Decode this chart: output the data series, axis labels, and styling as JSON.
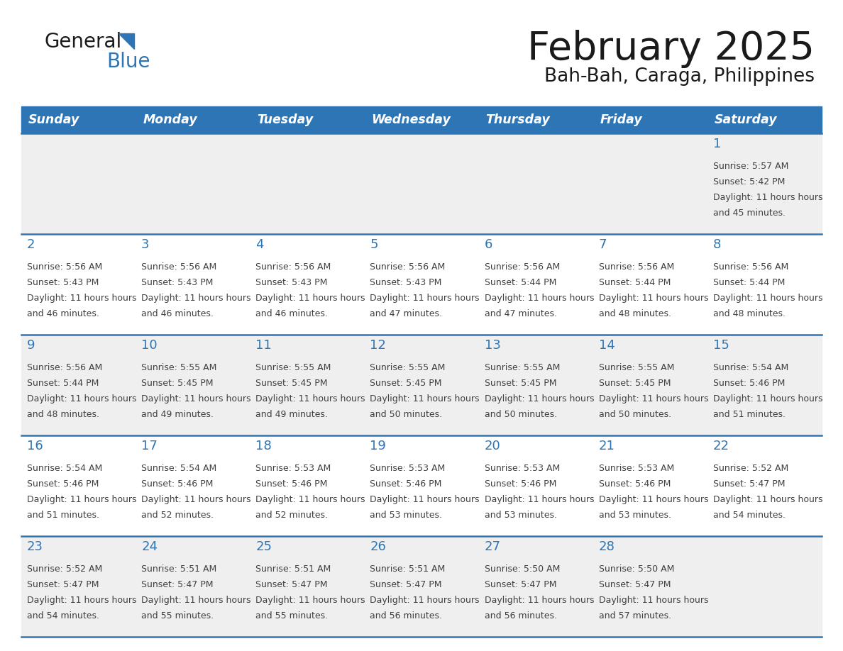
{
  "title": "February 2025",
  "subtitle": "Bah-Bah, Caraga, Philippines",
  "days_of_week": [
    "Sunday",
    "Monday",
    "Tuesday",
    "Wednesday",
    "Thursday",
    "Friday",
    "Saturday"
  ],
  "header_bg": "#2E75B6",
  "header_text_color": "#FFFFFF",
  "cell_bg_light": "#EFEFEF",
  "cell_bg_white": "#FFFFFF",
  "cell_border_color": "#2E75B6",
  "day_number_color": "#2E75B6",
  "info_text_color": "#404040",
  "title_color": "#1a1a1a",
  "subtitle_color": "#1a1a1a",
  "logo_general_color": "#1a1a1a",
  "logo_blue_color": "#2E75B6",
  "calendar_data": [
    [
      null,
      null,
      null,
      null,
      null,
      null,
      {
        "day": 1,
        "sunrise": "5:57 AM",
        "sunset": "5:42 PM",
        "daylight": "11 hours and 45 minutes"
      }
    ],
    [
      {
        "day": 2,
        "sunrise": "5:56 AM",
        "sunset": "5:43 PM",
        "daylight": "11 hours and 46 minutes"
      },
      {
        "day": 3,
        "sunrise": "5:56 AM",
        "sunset": "5:43 PM",
        "daylight": "11 hours and 46 minutes"
      },
      {
        "day": 4,
        "sunrise": "5:56 AM",
        "sunset": "5:43 PM",
        "daylight": "11 hours and 46 minutes"
      },
      {
        "day": 5,
        "sunrise": "5:56 AM",
        "sunset": "5:43 PM",
        "daylight": "11 hours and 47 minutes"
      },
      {
        "day": 6,
        "sunrise": "5:56 AM",
        "sunset": "5:44 PM",
        "daylight": "11 hours and 47 minutes"
      },
      {
        "day": 7,
        "sunrise": "5:56 AM",
        "sunset": "5:44 PM",
        "daylight": "11 hours and 48 minutes"
      },
      {
        "day": 8,
        "sunrise": "5:56 AM",
        "sunset": "5:44 PM",
        "daylight": "11 hours and 48 minutes"
      }
    ],
    [
      {
        "day": 9,
        "sunrise": "5:56 AM",
        "sunset": "5:44 PM",
        "daylight": "11 hours and 48 minutes"
      },
      {
        "day": 10,
        "sunrise": "5:55 AM",
        "sunset": "5:45 PM",
        "daylight": "11 hours and 49 minutes"
      },
      {
        "day": 11,
        "sunrise": "5:55 AM",
        "sunset": "5:45 PM",
        "daylight": "11 hours and 49 minutes"
      },
      {
        "day": 12,
        "sunrise": "5:55 AM",
        "sunset": "5:45 PM",
        "daylight": "11 hours and 50 minutes"
      },
      {
        "day": 13,
        "sunrise": "5:55 AM",
        "sunset": "5:45 PM",
        "daylight": "11 hours and 50 minutes"
      },
      {
        "day": 14,
        "sunrise": "5:55 AM",
        "sunset": "5:45 PM",
        "daylight": "11 hours and 50 minutes"
      },
      {
        "day": 15,
        "sunrise": "5:54 AM",
        "sunset": "5:46 PM",
        "daylight": "11 hours and 51 minutes"
      }
    ],
    [
      {
        "day": 16,
        "sunrise": "5:54 AM",
        "sunset": "5:46 PM",
        "daylight": "11 hours and 51 minutes"
      },
      {
        "day": 17,
        "sunrise": "5:54 AM",
        "sunset": "5:46 PM",
        "daylight": "11 hours and 52 minutes"
      },
      {
        "day": 18,
        "sunrise": "5:53 AM",
        "sunset": "5:46 PM",
        "daylight": "11 hours and 52 minutes"
      },
      {
        "day": 19,
        "sunrise": "5:53 AM",
        "sunset": "5:46 PM",
        "daylight": "11 hours and 53 minutes"
      },
      {
        "day": 20,
        "sunrise": "5:53 AM",
        "sunset": "5:46 PM",
        "daylight": "11 hours and 53 minutes"
      },
      {
        "day": 21,
        "sunrise": "5:53 AM",
        "sunset": "5:46 PM",
        "daylight": "11 hours and 53 minutes"
      },
      {
        "day": 22,
        "sunrise": "5:52 AM",
        "sunset": "5:47 PM",
        "daylight": "11 hours and 54 minutes"
      }
    ],
    [
      {
        "day": 23,
        "sunrise": "5:52 AM",
        "sunset": "5:47 PM",
        "daylight": "11 hours and 54 minutes"
      },
      {
        "day": 24,
        "sunrise": "5:51 AM",
        "sunset": "5:47 PM",
        "daylight": "11 hours and 55 minutes"
      },
      {
        "day": 25,
        "sunrise": "5:51 AM",
        "sunset": "5:47 PM",
        "daylight": "11 hours and 55 minutes"
      },
      {
        "day": 26,
        "sunrise": "5:51 AM",
        "sunset": "5:47 PM",
        "daylight": "11 hours and 56 minutes"
      },
      {
        "day": 27,
        "sunrise": "5:50 AM",
        "sunset": "5:47 PM",
        "daylight": "11 hours and 56 minutes"
      },
      {
        "day": 28,
        "sunrise": "5:50 AM",
        "sunset": "5:47 PM",
        "daylight": "11 hours and 57 minutes"
      },
      null
    ]
  ]
}
